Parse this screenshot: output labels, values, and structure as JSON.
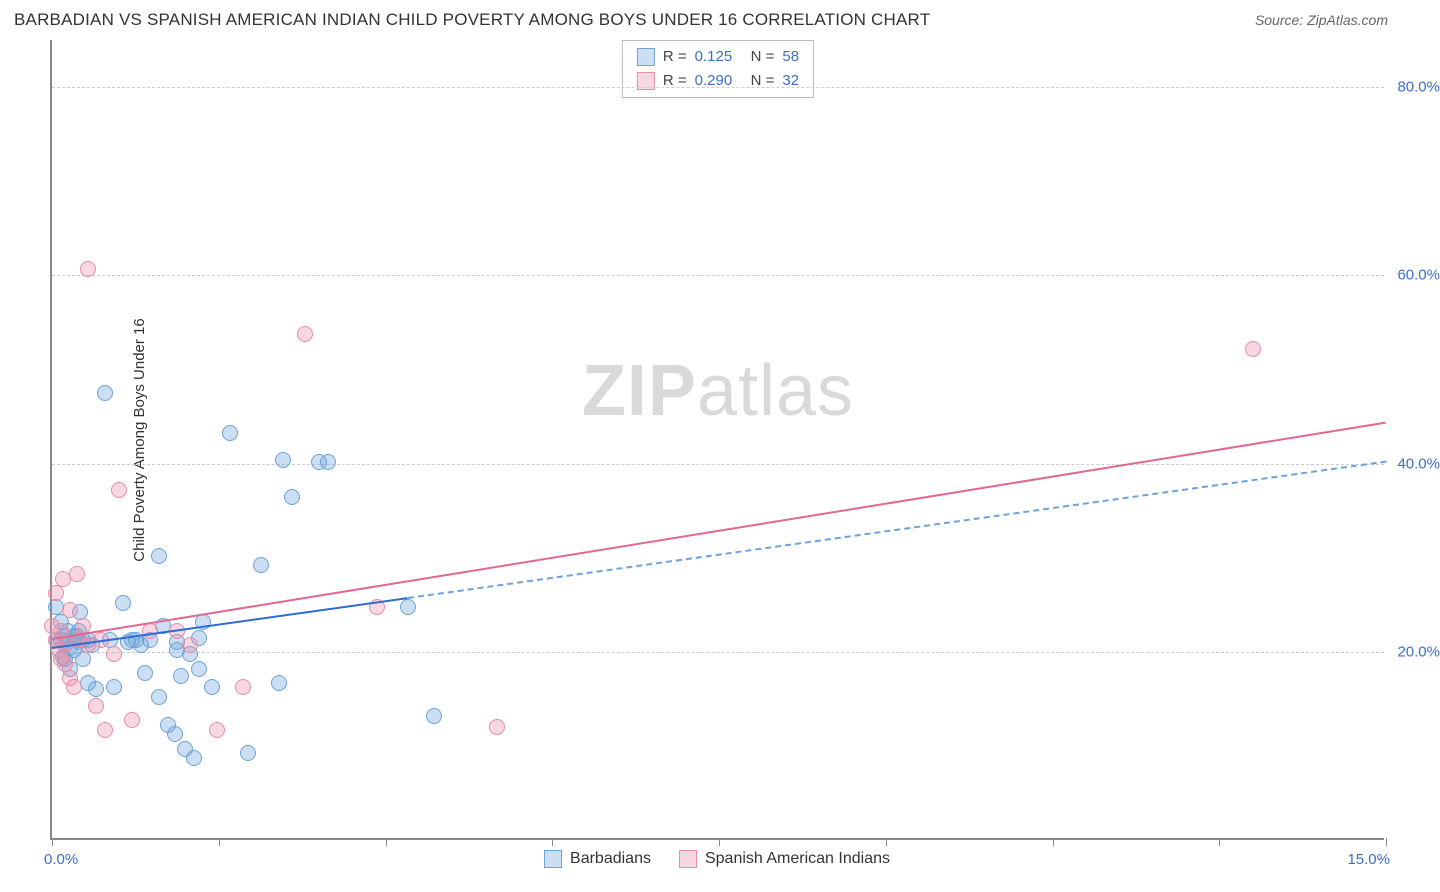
{
  "title": "BARBADIAN VS SPANISH AMERICAN INDIAN CHILD POVERTY AMONG BOYS UNDER 16 CORRELATION CHART",
  "source_label": "Source: ZipAtlas.com",
  "ylabel": "Child Poverty Among Boys Under 16",
  "watermark": {
    "bold": "ZIP",
    "rest": "atlas"
  },
  "xaxis": {
    "min": 0.0,
    "max": 15.0,
    "label_left": "0.0%",
    "label_right": "15.0%",
    "tick_positions_pct": [
      0,
      12.5,
      25,
      37.5,
      50,
      62.5,
      75,
      87.5,
      100
    ]
  },
  "yaxis": {
    "min": 0.0,
    "max": 85.0,
    "ticks": [
      {
        "v": 20.0,
        "label": "20.0%"
      },
      {
        "v": 40.0,
        "label": "40.0%"
      },
      {
        "v": 60.0,
        "label": "60.0%"
      },
      {
        "v": 80.0,
        "label": "80.0%"
      }
    ]
  },
  "series": [
    {
      "id": "barbadians",
      "label": "Barbadians",
      "fill": "rgba(108,163,219,0.35)",
      "stroke": "#6ca3db",
      "point_radius": 8,
      "line_color": "#2e6bd6",
      "line_dash_color": "#6ca3db",
      "R": "0.125",
      "N": "58",
      "trend": {
        "x1": 0.0,
        "y1": 20.5,
        "x2_solid": 4.0,
        "y2_solid": 25.8,
        "x2_dash": 15.0,
        "y2_dash": 40.3
      },
      "points": [
        [
          0.05,
          21.0
        ],
        [
          0.05,
          24.5
        ],
        [
          0.1,
          21.0
        ],
        [
          0.1,
          23.0
        ],
        [
          0.12,
          19.2
        ],
        [
          0.15,
          19.0
        ],
        [
          0.15,
          20.5
        ],
        [
          0.15,
          21.5
        ],
        [
          0.18,
          22.0
        ],
        [
          0.2,
          18.0
        ],
        [
          0.2,
          20.2
        ],
        [
          0.25,
          20.0
        ],
        [
          0.25,
          21.5
        ],
        [
          0.28,
          21.5
        ],
        [
          0.3,
          20.8
        ],
        [
          0.3,
          22.0
        ],
        [
          0.32,
          24.0
        ],
        [
          0.35,
          19.0
        ],
        [
          0.35,
          21.0
        ],
        [
          0.4,
          16.5
        ],
        [
          0.4,
          21.0
        ],
        [
          0.45,
          20.5
        ],
        [
          0.5,
          15.8
        ],
        [
          0.6,
          47.3
        ],
        [
          0.65,
          21.0
        ],
        [
          0.7,
          16.0
        ],
        [
          0.8,
          25.0
        ],
        [
          0.85,
          20.8
        ],
        [
          0.9,
          21.0
        ],
        [
          0.95,
          21.0
        ],
        [
          1.0,
          20.5
        ],
        [
          1.05,
          17.5
        ],
        [
          1.1,
          21.0
        ],
        [
          1.2,
          15.0
        ],
        [
          1.2,
          30.0
        ],
        [
          1.25,
          22.5
        ],
        [
          1.3,
          12.0
        ],
        [
          1.38,
          11.0
        ],
        [
          1.4,
          20.0
        ],
        [
          1.4,
          20.8
        ],
        [
          1.45,
          17.2
        ],
        [
          1.5,
          9.5
        ],
        [
          1.55,
          19.5
        ],
        [
          1.6,
          8.5
        ],
        [
          1.65,
          18.0
        ],
        [
          1.65,
          21.2
        ],
        [
          1.7,
          23.0
        ],
        [
          1.8,
          16.0
        ],
        [
          2.0,
          43.0
        ],
        [
          2.2,
          9.0
        ],
        [
          2.35,
          29.0
        ],
        [
          2.55,
          16.5
        ],
        [
          2.6,
          40.2
        ],
        [
          2.7,
          36.2
        ],
        [
          3.0,
          40.0
        ],
        [
          3.1,
          40.0
        ],
        [
          4.0,
          24.5
        ],
        [
          4.3,
          13.0
        ]
      ]
    },
    {
      "id": "spanish_ai",
      "label": "Spanish American Indians",
      "fill": "rgba(232,140,168,0.35)",
      "stroke": "#e88ca8",
      "point_radius": 8,
      "line_color": "#e26891",
      "R": "0.290",
      "N": "32",
      "trend": {
        "x1": 0.0,
        "y1": 21.5,
        "x2_solid": 15.0,
        "y2_solid": 44.5
      },
      "points": [
        [
          0.0,
          22.5
        ],
        [
          0.05,
          21.0
        ],
        [
          0.05,
          26.0
        ],
        [
          0.08,
          20.0
        ],
        [
          0.1,
          19.0
        ],
        [
          0.1,
          22.0
        ],
        [
          0.12,
          27.5
        ],
        [
          0.15,
          18.5
        ],
        [
          0.15,
          20.5
        ],
        [
          0.2,
          17.0
        ],
        [
          0.2,
          24.2
        ],
        [
          0.25,
          16.0
        ],
        [
          0.28,
          28.0
        ],
        [
          0.3,
          21.0
        ],
        [
          0.35,
          22.5
        ],
        [
          0.4,
          20.5
        ],
        [
          0.4,
          60.5
        ],
        [
          0.5,
          14.0
        ],
        [
          0.55,
          21.0
        ],
        [
          0.6,
          11.5
        ],
        [
          0.7,
          19.5
        ],
        [
          0.75,
          37.0
        ],
        [
          0.9,
          12.5
        ],
        [
          1.1,
          22.0
        ],
        [
          1.4,
          22.0
        ],
        [
          1.55,
          20.5
        ],
        [
          1.85,
          11.5
        ],
        [
          2.15,
          16.0
        ],
        [
          2.85,
          53.5
        ],
        [
          3.65,
          24.5
        ],
        [
          5.0,
          11.8
        ],
        [
          13.5,
          52.0
        ]
      ]
    }
  ],
  "stats_box": {
    "rows": [
      {
        "swatch_fill": "rgba(108,163,219,0.35)",
        "swatch_stroke": "#6ca3db",
        "R_label": "R =",
        "R": "0.125",
        "N_label": "N =",
        "N": "58"
      },
      {
        "swatch_fill": "rgba(232,140,168,0.35)",
        "swatch_stroke": "#e88ca8",
        "R_label": "R =",
        "R": "0.290",
        "N_label": "N =",
        "N": "32"
      }
    ]
  },
  "legend": [
    {
      "swatch_fill": "rgba(108,163,219,0.35)",
      "swatch_stroke": "#6ca3db",
      "label": "Barbadians"
    },
    {
      "swatch_fill": "rgba(232,140,168,0.35)",
      "swatch_stroke": "#e88ca8",
      "label": "Spanish American Indians"
    }
  ],
  "colors": {
    "axis": "#888888",
    "grid": "#cccccc",
    "text": "#333333",
    "tick_label": "#3b6fc9",
    "background": "#ffffff"
  }
}
